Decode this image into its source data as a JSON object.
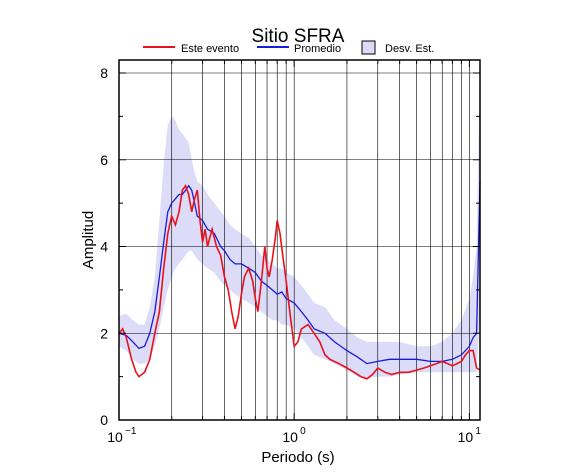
{
  "chart_data": {
    "type": "line",
    "title": "Sitio SFRA",
    "xlabel": "Periodo (s)",
    "ylabel": "Amplitud",
    "xscale": "log",
    "xlim": [
      0.1,
      11.5
    ],
    "ylim": [
      0,
      8.3
    ],
    "grid": true,
    "legend_position": "top",
    "y_ticks": [
      "0",
      "2",
      "4",
      "6",
      "8"
    ],
    "x_ticks": [
      {
        "base": "10",
        "exp": "−1",
        "value": 0.1
      },
      {
        "base": "10",
        "exp": "0",
        "value": 1
      },
      {
        "base": "10",
        "exp": "1",
        "value": 10
      }
    ],
    "colors": {
      "event": "#e8121c",
      "average": "#1a1adb",
      "band_fill": "#dcdcf8"
    },
    "series": [
      {
        "name": "Este evento",
        "x": [
          0.1,
          0.105,
          0.11,
          0.118,
          0.125,
          0.13,
          0.14,
          0.15,
          0.16,
          0.17,
          0.18,
          0.19,
          0.2,
          0.21,
          0.22,
          0.23,
          0.24,
          0.25,
          0.26,
          0.27,
          0.28,
          0.29,
          0.3,
          0.31,
          0.32,
          0.33,
          0.34,
          0.35,
          0.36,
          0.38,
          0.4,
          0.42,
          0.44,
          0.46,
          0.48,
          0.5,
          0.52,
          0.55,
          0.58,
          0.6,
          0.62,
          0.65,
          0.68,
          0.7,
          0.72,
          0.75,
          0.78,
          0.8,
          0.83,
          0.86,
          0.9,
          0.95,
          1.0,
          1.05,
          1.1,
          1.2,
          1.3,
          1.4,
          1.5,
          1.6,
          1.8,
          2.0,
          2.2,
          2.4,
          2.6,
          2.8,
          3.0,
          3.3,
          3.6,
          4.0,
          4.5,
          5.0,
          5.5,
          6.0,
          6.5,
          7.0,
          7.5,
          8.0,
          8.5,
          9.0,
          9.5,
          10.0,
          10.5,
          11.0,
          11.5
        ],
        "y": [
          2.0,
          2.1,
          1.9,
          1.4,
          1.1,
          1.0,
          1.1,
          1.4,
          2.0,
          2.5,
          3.5,
          4.3,
          4.7,
          4.5,
          4.8,
          5.3,
          5.4,
          5.2,
          4.8,
          5.1,
          5.3,
          4.6,
          4.1,
          4.4,
          4.0,
          4.2,
          4.4,
          4.2,
          4.0,
          3.8,
          3.3,
          3.0,
          2.5,
          2.1,
          2.4,
          2.9,
          3.3,
          3.5,
          3.2,
          2.8,
          2.5,
          3.2,
          4.0,
          3.5,
          3.3,
          3.7,
          4.2,
          4.6,
          4.3,
          3.8,
          3.2,
          2.4,
          1.7,
          1.8,
          2.1,
          2.2,
          2.0,
          1.8,
          1.5,
          1.4,
          1.3,
          1.2,
          1.1,
          1.0,
          0.95,
          1.05,
          1.2,
          1.1,
          1.05,
          1.1,
          1.1,
          1.15,
          1.2,
          1.25,
          1.3,
          1.35,
          1.3,
          1.25,
          1.3,
          1.35,
          1.5,
          1.6,
          1.6,
          1.2,
          1.15
        ]
      },
      {
        "name": "Promedio",
        "x": [
          0.1,
          0.11,
          0.12,
          0.13,
          0.14,
          0.15,
          0.16,
          0.17,
          0.18,
          0.19,
          0.2,
          0.21,
          0.22,
          0.23,
          0.24,
          0.25,
          0.26,
          0.27,
          0.28,
          0.3,
          0.32,
          0.35,
          0.38,
          0.4,
          0.43,
          0.46,
          0.5,
          0.55,
          0.6,
          0.65,
          0.7,
          0.75,
          0.8,
          0.85,
          0.9,
          1.0,
          1.1,
          1.2,
          1.3,
          1.5,
          1.7,
          2.0,
          2.3,
          2.6,
          3.0,
          3.5,
          4.0,
          5.0,
          6.0,
          7.0,
          8.0,
          9.0,
          10.0,
          10.5,
          11.0,
          11.5
        ],
        "y": [
          2.0,
          1.95,
          1.8,
          1.65,
          1.7,
          2.0,
          2.5,
          3.3,
          4.1,
          4.8,
          5.0,
          5.1,
          5.2,
          5.2,
          5.3,
          5.4,
          5.3,
          5.0,
          4.7,
          4.6,
          4.4,
          4.3,
          4.0,
          3.9,
          3.7,
          3.6,
          3.6,
          3.5,
          3.4,
          3.2,
          3.1,
          3.0,
          2.9,
          2.95,
          2.8,
          2.7,
          2.5,
          2.3,
          2.1,
          2.0,
          1.8,
          1.6,
          1.45,
          1.3,
          1.35,
          1.4,
          1.4,
          1.4,
          1.35,
          1.35,
          1.4,
          1.5,
          1.7,
          1.9,
          2.0,
          5.5
        ]
      },
      {
        "name": "Desv. Est.",
        "x": [
          0.1,
          0.11,
          0.12,
          0.13,
          0.14,
          0.15,
          0.16,
          0.17,
          0.18,
          0.19,
          0.2,
          0.21,
          0.22,
          0.23,
          0.24,
          0.25,
          0.26,
          0.27,
          0.28,
          0.3,
          0.32,
          0.35,
          0.38,
          0.4,
          0.43,
          0.46,
          0.5,
          0.55,
          0.6,
          0.65,
          0.7,
          0.75,
          0.8,
          0.85,
          0.9,
          1.0,
          1.1,
          1.2,
          1.3,
          1.5,
          1.7,
          2.0,
          2.3,
          2.6,
          3.0,
          3.5,
          4.0,
          5.0,
          6.0,
          7.0,
          8.0,
          9.0,
          10.0,
          10.5,
          11.0,
          11.5
        ],
        "upper": [
          2.4,
          2.45,
          2.3,
          2.2,
          2.2,
          2.6,
          3.3,
          4.6,
          5.9,
          6.8,
          7.0,
          6.9,
          6.7,
          6.6,
          6.5,
          6.4,
          6.0,
          5.7,
          5.5,
          5.4,
          5.2,
          5.0,
          4.8,
          4.7,
          4.5,
          4.4,
          4.3,
          4.2,
          4.0,
          3.8,
          3.7,
          3.6,
          3.5,
          3.5,
          3.4,
          3.3,
          3.1,
          2.9,
          2.7,
          2.6,
          2.3,
          2.1,
          1.9,
          1.8,
          1.8,
          1.8,
          1.8,
          1.7,
          1.7,
          1.8,
          2.0,
          2.3,
          2.8,
          3.3,
          4.0,
          8.3
        ],
        "lower": [
          1.7,
          1.6,
          1.4,
          1.3,
          1.3,
          1.4,
          1.7,
          2.1,
          2.6,
          3.0,
          3.3,
          3.5,
          3.6,
          3.7,
          3.8,
          3.9,
          3.9,
          3.8,
          3.7,
          3.6,
          3.5,
          3.4,
          3.2,
          3.1,
          3.0,
          2.9,
          2.8,
          2.7,
          2.6,
          2.5,
          2.4,
          2.3,
          2.3,
          2.2,
          2.2,
          2.1,
          1.9,
          1.7,
          1.5,
          1.4,
          1.3,
          1.15,
          1.0,
          0.95,
          1.0,
          1.0,
          1.05,
          1.1,
          1.1,
          1.1,
          1.1,
          1.1,
          1.1,
          1.1,
          1.1,
          2.5
        ]
      }
    ]
  }
}
